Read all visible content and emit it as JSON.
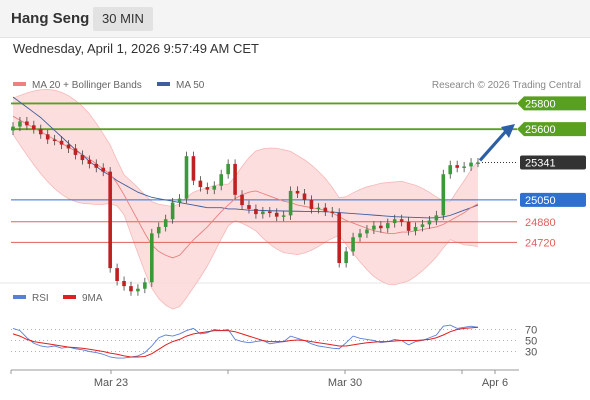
{
  "header": {
    "instrument": "Hang Seng",
    "timeframe": "30 MIN"
  },
  "subtitle": "Wednesday, April 1, 2026 9:57:49 AM CET",
  "source": "Research © 2026 Trading Central",
  "legends": {
    "bb": {
      "label": "MA 20 + Bollinger Bands",
      "color": "#f08080"
    },
    "ma50": {
      "label": "MA 50",
      "color": "#3e5e9e"
    },
    "rsi": {
      "label": "RSI",
      "color": "#5b7fd6"
    },
    "rsi_ma": {
      "label": "9MA",
      "color": "#e02020"
    }
  },
  "colors": {
    "resistance": "#5aa020",
    "pivot": "#2f6fd0",
    "support": "#e06060",
    "current": "#333333",
    "bull_candle": "#3a9a3a",
    "bear_candle": "#c02020",
    "band_fill": "#fcd8d8",
    "arrow": "#2d5fa6"
  },
  "chart_data": {
    "type": "candlestick",
    "instrument": "Hang Seng",
    "interval": "30 MIN",
    "price_range": [
      24420,
      25850
    ],
    "x_ticks": [
      "Mar 23",
      "Mar 30",
      "Apr 6"
    ],
    "levels": [
      {
        "label": "25800",
        "value": 25800,
        "kind": "resistance"
      },
      {
        "label": "25600",
        "value": 25600,
        "kind": "resistance"
      },
      {
        "label": "25341",
        "value": 25341,
        "kind": "current"
      },
      {
        "label": "25050",
        "value": 25050,
        "kind": "pivot"
      },
      {
        "label": "24880",
        "value": 24880,
        "kind": "support"
      },
      {
        "label": "24720",
        "value": 24720,
        "kind": "support"
      }
    ],
    "closes": [
      25620,
      25660,
      25630,
      25600,
      25560,
      25520,
      25510,
      25480,
      25450,
      25400,
      25360,
      25330,
      25300,
      25270,
      24520,
      24420,
      24380,
      24340,
      24360,
      24410,
      24790,
      24840,
      24900,
      25030,
      25060,
      25390,
      25200,
      25150,
      25130,
      25160,
      25250,
      25330,
      25090,
      25010,
      24980,
      24940,
      24960,
      24950,
      24920,
      24930,
      25120,
      25100,
      25050,
      24980,
      24990,
      24960,
      24950,
      24560,
      24650,
      24760,
      24790,
      24820,
      24850,
      24830,
      24870,
      24900,
      24880,
      24810,
      24840,
      24860,
      24890,
      24930,
      25250,
      25320,
      25300,
      25310,
      25340,
      25341
    ],
    "ma20": [
      25700,
      25670,
      25640,
      25610,
      25580,
      25550,
      25520,
      25490,
      25460,
      25430,
      25400,
      25370,
      25330,
      25290,
      25250,
      25180,
      25090,
      24990,
      24890,
      24790,
      24700,
      24650,
      24620,
      24600,
      24620,
      24680,
      24740,
      24790,
      24840,
      24900,
      24960,
      25010,
      25060,
      25090,
      25110,
      25120,
      25100,
      25080,
      25060,
      25040,
      25030,
      25010,
      25000,
      24990,
      24980,
      24970,
      24950,
      24920,
      24890,
      24870,
      24850,
      24830,
      24810,
      24800,
      24790,
      24790,
      24800,
      24800,
      24810,
      24820,
      24830,
      24840,
      24860,
      24890,
      24920,
      24950,
      24990,
      25020
    ],
    "ma50": [
      25850,
      25810,
      25770,
      25730,
      25690,
      25640,
      25590,
      25540,
      25490,
      25440,
      25400,
      25350,
      25310,
      25270,
      25240,
      25200,
      25170,
      25140,
      25110,
      25090,
      25070,
      25060,
      25050,
      25040,
      25030,
      25020,
      25010,
      25000,
      24990,
      24990,
      24990,
      24980,
      24980,
      24975,
      24970,
      24970,
      24968,
      24966,
      24965,
      24964,
      24963,
      24962,
      24961,
      24960,
      24960,
      24958,
      24956,
      24952,
      24948,
      24944,
      24940,
      24936,
      24932,
      24928,
      24924,
      24920,
      24918,
      24916,
      24914,
      24912,
      24910,
      24912,
      24918,
      24930,
      24950,
      24970,
      24990,
      25010
    ],
    "rsi_range": [
      0,
      100
    ],
    "rsi_levels": [
      70,
      50,
      30
    ],
    "rsi": [
      72,
      68,
      55,
      45,
      40,
      38,
      40,
      36,
      38,
      35,
      33,
      30,
      28,
      25,
      20,
      18,
      18,
      20,
      22,
      28,
      40,
      55,
      60,
      58,
      62,
      68,
      72,
      62,
      64,
      70,
      68,
      70,
      52,
      48,
      46,
      48,
      50,
      44,
      46,
      48,
      58,
      54,
      50,
      44,
      40,
      38,
      36,
      35,
      46,
      58,
      54,
      52,
      50,
      46,
      48,
      52,
      50,
      42,
      48,
      50,
      55,
      60,
      76,
      78,
      72,
      74,
      76,
      74
    ],
    "rsi_ma": [
      62,
      58,
      52,
      48,
      46,
      44,
      42,
      40,
      38,
      37,
      36,
      34,
      32,
      30,
      27,
      25,
      22,
      20,
      20,
      21,
      26,
      34,
      42,
      48,
      52,
      58,
      62,
      64,
      66,
      68,
      68,
      68,
      66,
      62,
      58,
      54,
      50,
      48,
      48,
      48,
      50,
      51,
      50,
      48,
      46,
      44,
      42,
      40,
      40,
      42,
      44,
      46,
      47,
      48,
      48,
      49,
      50,
      50,
      50,
      51,
      52,
      55,
      60,
      66,
      70,
      72,
      73,
      74
    ]
  }
}
